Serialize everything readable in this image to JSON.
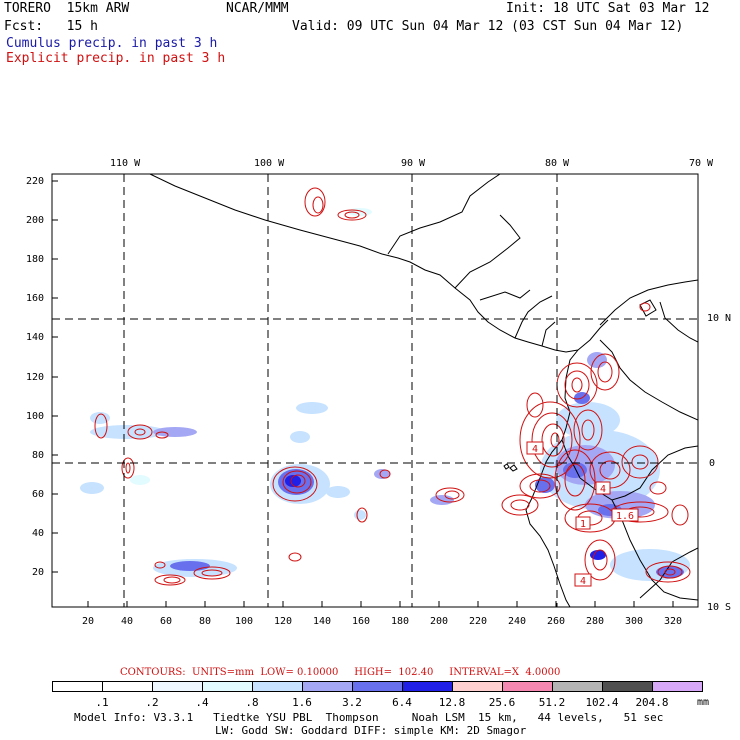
{
  "header": {
    "model": "TORERO  15km ARW",
    "center": "NCAR/MMM",
    "init": "Init: 18 UTC Sat 03 Mar 12",
    "fcst": "Fcst:   15 h",
    "valid": "Valid: 09 UTC Sun 04 Mar 12 (03 CST Sun 04 Mar 12)",
    "cumulus_label": "Cumulus precip. in past 3 h",
    "explicit_label": "Explicit precip. in past 3 h"
  },
  "map": {
    "lon_labels": [
      "110 W",
      "100 W",
      "90 W",
      "80 W",
      "70 W"
    ],
    "lat_labels": [
      "10 N",
      "0",
      "10 S"
    ],
    "y_ticks": [
      "220",
      "200",
      "180",
      "160",
      "140",
      "120",
      "100",
      "80",
      "60",
      "40",
      "20"
    ],
    "x_ticks": [
      "20",
      "40",
      "60",
      "80",
      "100",
      "120",
      "140",
      "160",
      "180",
      "200",
      "220",
      "240",
      "260",
      "280",
      "300",
      "320"
    ],
    "contour_labels": [
      "4",
      "4",
      "1.6",
      "1",
      "4"
    ]
  },
  "legend": {
    "contours_text": "CONTOURS:  UNITS=mm  LOW= 0.10000     HIGH=  102.40     INTERVAL=X  4.0000",
    "units": "mm",
    "scale_labels": [
      ".1",
      ".2",
      ".4",
      ".8",
      "1.6",
      "3.2",
      "6.4",
      "12.8",
      "25.6",
      "51.2",
      "102.4",
      "204.8"
    ],
    "scale_colors": [
      "#ffffff",
      "#ffffff",
      "#eef6ff",
      "#e2fbff",
      "#c6e2ff",
      "#a4a8f4",
      "#6870ee",
      "#2020e6",
      "#ffd0d0",
      "#f588b0",
      "#b4b4b4",
      "#505050",
      "#d8a8f8"
    ]
  },
  "footer": {
    "line1": "Model Info: V3.3.1   Tiedtke YSU PBL  Thompson     Noah LSM  15 km,   44 levels,   51 sec",
    "line2": "LW: Godd SW: Goddard DIFF: simple KM: 2D Smagor"
  }
}
